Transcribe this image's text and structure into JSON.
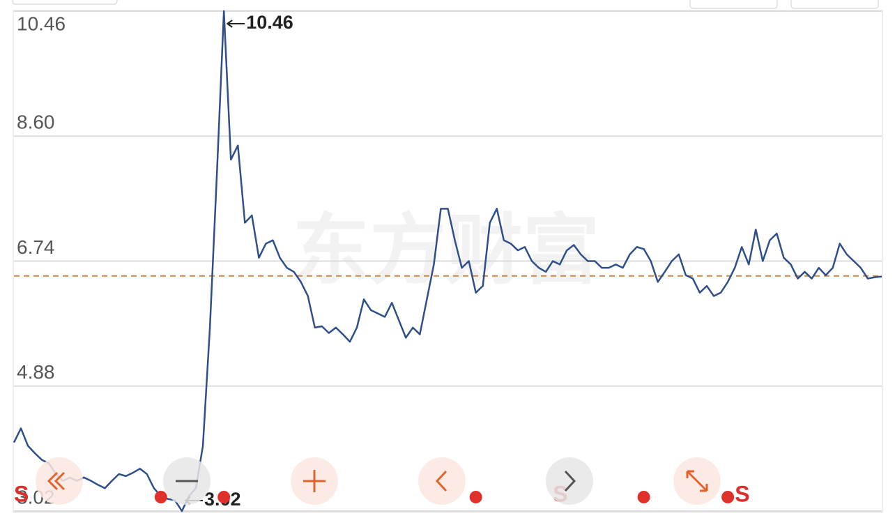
{
  "chart_data": {
    "type": "line",
    "watermark": "东方财富",
    "color": "#2f4f8a",
    "values": [
      4.04,
      4.25,
      3.99,
      3.88,
      3.78,
      3.73,
      3.57,
      3.47,
      3.52,
      3.47,
      3.52,
      3.47,
      3.41,
      3.36,
      3.47,
      3.57,
      3.54,
      3.59,
      3.65,
      3.57,
      3.36,
      3.24,
      3.2,
      3.18,
      3.02,
      3.24,
      3.36,
      3.99,
      5.75,
      8.04,
      10.46,
      8.25,
      8.46,
      7.31,
      7.42,
      6.79,
      7.0,
      7.05,
      6.79,
      6.64,
      6.58,
      6.43,
      6.22,
      5.75,
      5.77,
      5.67,
      5.75,
      5.65,
      5.54,
      5.75,
      6.17,
      6.01,
      5.96,
      5.91,
      6.12,
      5.86,
      5.6,
      5.75,
      5.65,
      6.17,
      6.69,
      7.52,
      7.52,
      7.05,
      6.64,
      6.74,
      6.27,
      6.37,
      7.31,
      7.52,
      7.05,
      7.0,
      6.9,
      6.95,
      6.74,
      6.64,
      6.58,
      6.74,
      6.69,
      6.9,
      6.98,
      6.84,
      6.74,
      6.74,
      6.64,
      6.64,
      6.69,
      6.64,
      6.84,
      6.95,
      6.92,
      6.74,
      6.43,
      6.58,
      6.74,
      6.84,
      6.53,
      6.48,
      6.27,
      6.37,
      6.22,
      6.27,
      6.43,
      6.64,
      6.95,
      6.69,
      7.21,
      6.74,
      7.05,
      7.15,
      6.79,
      6.69,
      6.48,
      6.58,
      6.48,
      6.64,
      6.53,
      6.64,
      7.0,
      6.84,
      6.74,
      6.64,
      6.48,
      6.5,
      6.51
    ],
    "ylim": [
      3.02,
      10.46
    ],
    "yticks": [
      3.02,
      4.88,
      6.74,
      {
        "value": 8.6,
        "label": "8.60"
      },
      10.46
    ],
    "grid": true,
    "reference_line": {
      "value": 6.52,
      "color": "#c8894a"
    },
    "annotations": [
      {
        "index": 30,
        "value": 10.46
      },
      {
        "index": 24,
        "value": 3.02
      }
    ],
    "signals": [
      {
        "index": 1,
        "label": "S"
      },
      {
        "index": 78,
        "label": "S"
      },
      {
        "index": 104,
        "label": "S"
      }
    ],
    "signal_dots": [
      21,
      30,
      66,
      90,
      102
    ]
  }
}
